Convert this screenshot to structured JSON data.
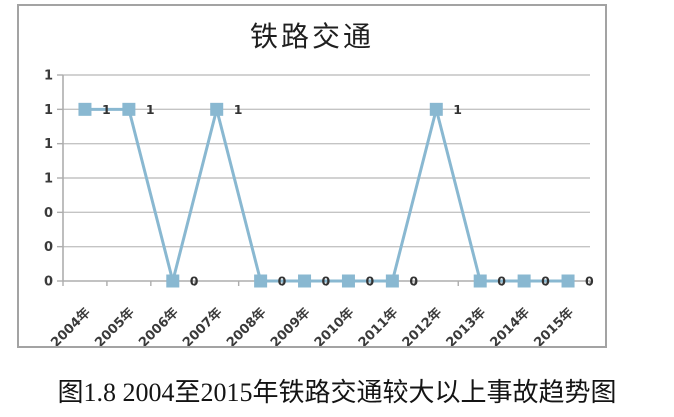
{
  "chart_data": {
    "type": "line",
    "title": "铁路交通",
    "categories": [
      "2004年",
      "2005年",
      "2006年",
      "2007年",
      "2008年",
      "2009年",
      "2010年",
      "2011年",
      "2012年",
      "2013年",
      "2014年",
      "2015年"
    ],
    "series": [
      {
        "name": "铁路交通",
        "values": [
          1,
          1,
          0,
          1,
          0,
          0,
          0,
          0,
          1,
          0,
          0,
          0
        ]
      }
    ],
    "data_labels": [
      "1",
      "1",
      "0",
      "1",
      "0",
      "0",
      "0",
      "0",
      "1",
      "0",
      "0",
      "0"
    ],
    "y_tick_labels_top_to_bottom": [
      "1",
      "1",
      "1",
      "1",
      "0",
      "0",
      "0"
    ],
    "ylim": [
      0,
      1.2
    ],
    "xlabel": "",
    "ylabel": "",
    "grid": true,
    "legend": false,
    "marker": "square",
    "x_label_rotation_deg": -45,
    "colors": {
      "line": "#89b8d1",
      "marker": "#89b8d1",
      "gridline": "#c4c4c4",
      "axis": "#adadad",
      "tick_text": "#3a3a3a",
      "data_label": "#333333",
      "frame_border": "#a3a3a3",
      "title_text": "#1f1f1f",
      "background": "#ffffff"
    }
  },
  "caption": "图1.8 2004至2015年铁路交通较大以上事故趋势图"
}
